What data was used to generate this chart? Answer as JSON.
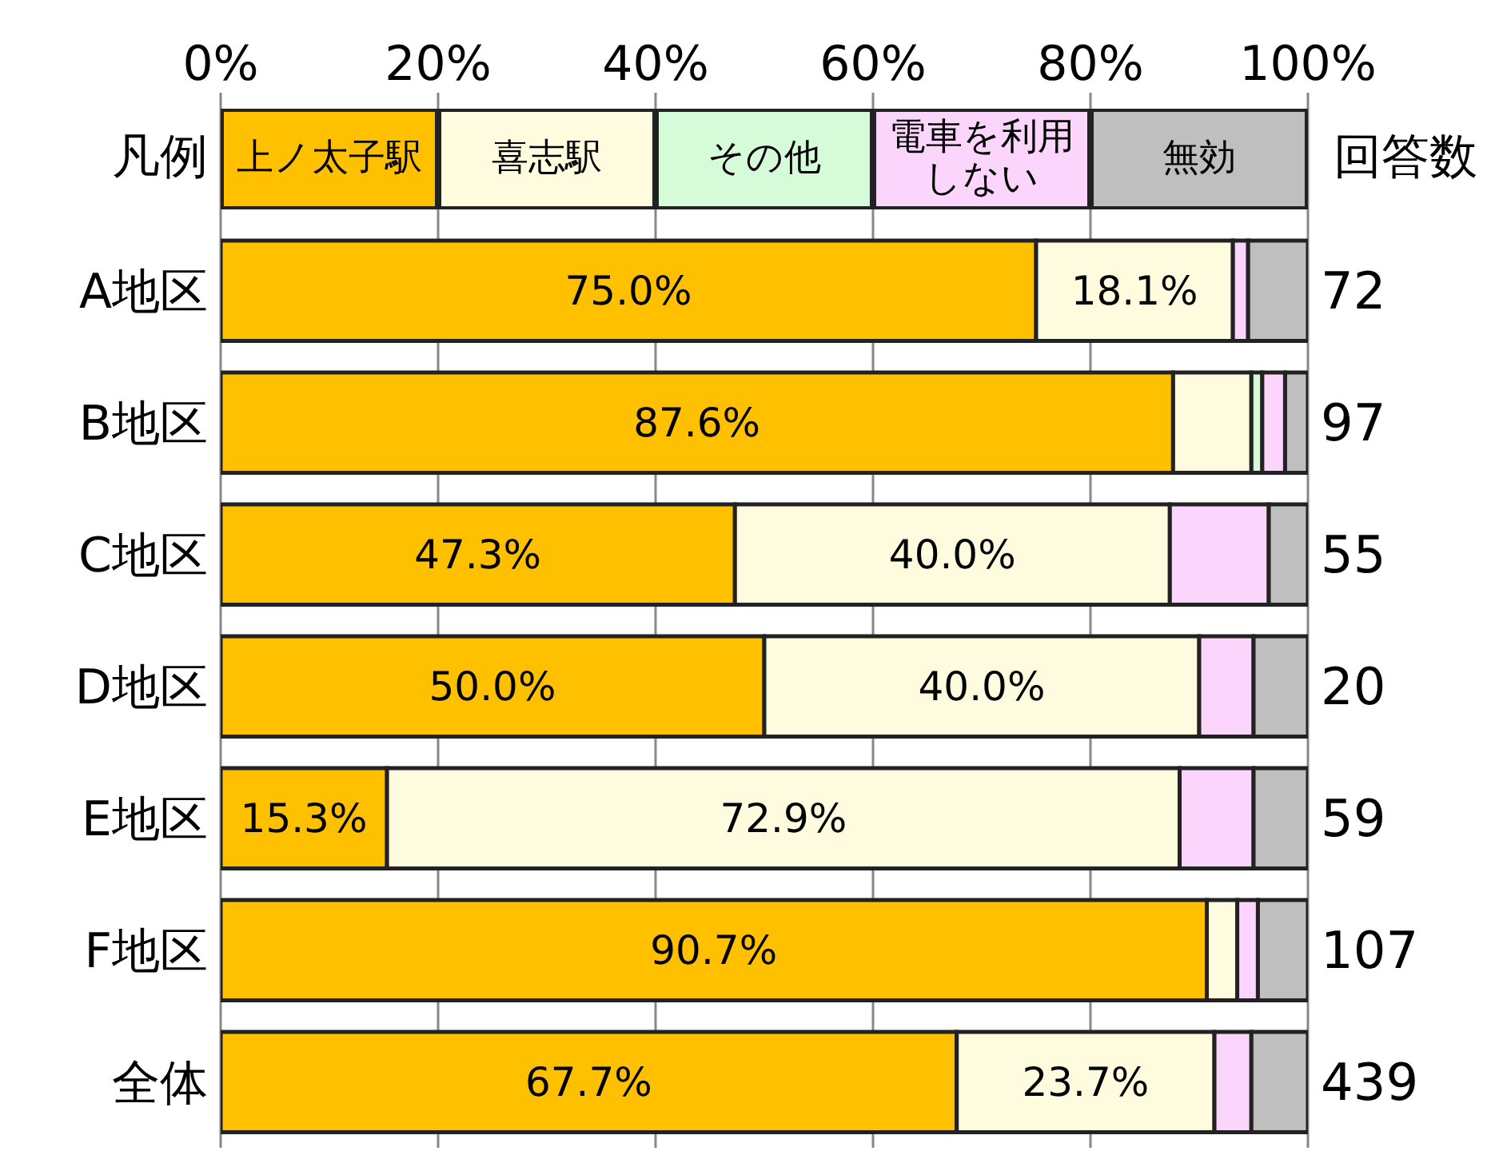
{
  "chart_data": {
    "type": "bar",
    "orientation": "horizontal",
    "stacked": true,
    "legend_title": "凡例",
    "y2label": "回答数",
    "legend": "top",
    "grid": "x",
    "categories": [
      "A地区",
      "B地区",
      "C地区",
      "D地区",
      "E地区",
      "F地区",
      "全体"
    ],
    "y2_categories": [
      "72",
      "97",
      "55",
      "20",
      "59",
      "107",
      "439"
    ],
    "xlim": [
      0,
      100
    ],
    "xticks": [
      {
        "value": 0,
        "label": "0%"
      },
      {
        "value": 20,
        "label": "20%"
      },
      {
        "value": 40,
        "label": "40%"
      },
      {
        "value": 60,
        "label": "60%"
      },
      {
        "value": 80,
        "label": "80%"
      },
      {
        "value": 100,
        "label": "100%"
      }
    ],
    "series": [
      {
        "name": "上ノ太子駅",
        "color": "#ffc000",
        "values": [
          75.0,
          87.6,
          47.3,
          50.0,
          15.3,
          90.7,
          67.7
        ],
        "value_labels": [
          "75.0%",
          "87.6%",
          "47.3%",
          "50.0%",
          "15.3%",
          "90.7%",
          "67.7%"
        ]
      },
      {
        "name": "喜志駅",
        "color": "#fffbdf",
        "values": [
          18.1,
          7.2,
          40.0,
          40.0,
          72.9,
          2.8,
          23.7
        ],
        "value_labels": [
          "18.1%",
          null,
          "40.0%",
          "40.0%",
          "72.9%",
          null,
          "23.7%"
        ]
      },
      {
        "name": "その他",
        "color": "#d5fbd9",
        "values": [
          0,
          1.0,
          0,
          0,
          0,
          0,
          0
        ]
      },
      {
        "name": "電車を利用しない",
        "color": "#fcd5fc",
        "values": [
          1.4,
          2.1,
          9.1,
          5.0,
          6.8,
          1.9,
          3.4
        ]
      },
      {
        "name": "無効",
        "color": "#bfbfbf",
        "values": [
          5.5,
          2.1,
          3.6,
          5.0,
          5.1,
          4.7,
          5.2
        ]
      }
    ]
  }
}
